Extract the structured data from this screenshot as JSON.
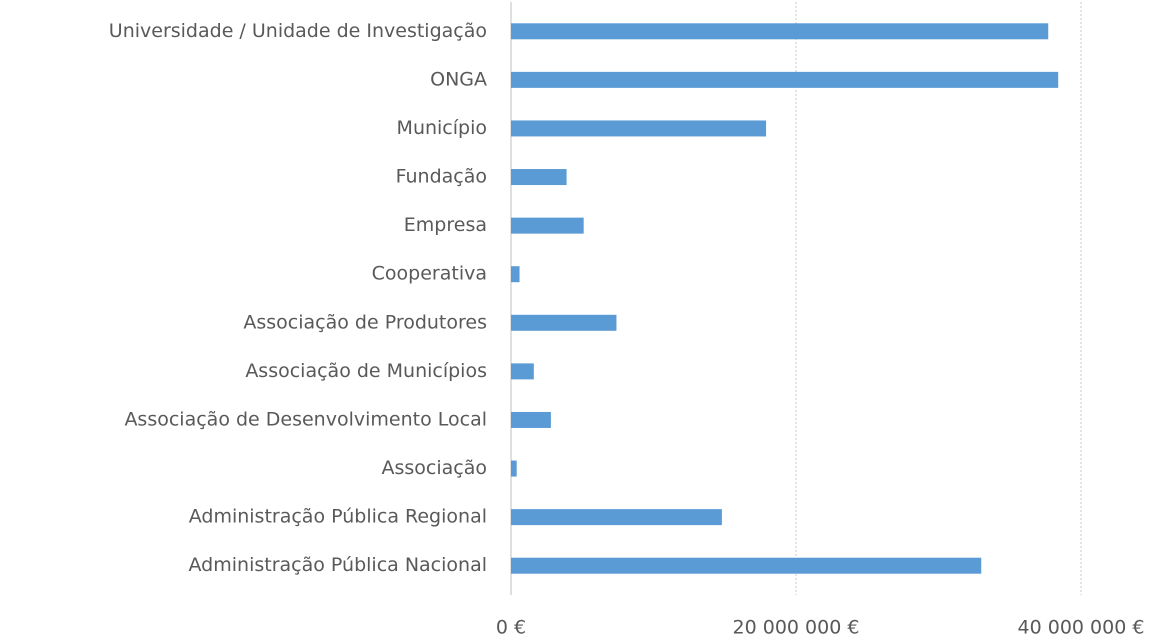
{
  "chart_data": {
    "type": "bar",
    "orientation": "horizontal",
    "categories": [
      "Universidade / Unidade de Investigação",
      "ONGA",
      "Município",
      "Fundação",
      "Empresa",
      "Cooperativa",
      "Associação de Produtores",
      "Associação de Municípios",
      "Associação de Desenvolvimento Local",
      "Associação",
      "Administração Pública Regional",
      "Administração Pública Nacional"
    ],
    "values": [
      37700000,
      38400000,
      17900000,
      3900000,
      5100000,
      600000,
      7400000,
      1600000,
      2800000,
      400000,
      14800000,
      33000000
    ],
    "color": "#5b9bd5",
    "xlim": [
      0,
      40000000
    ],
    "xticks": [
      {
        "value": 0,
        "label": "0 €"
      },
      {
        "value": 20000000,
        "label": "20 000 000 €"
      },
      {
        "value": 40000000,
        "label": "40 000 000 €"
      }
    ],
    "grid": true
  }
}
